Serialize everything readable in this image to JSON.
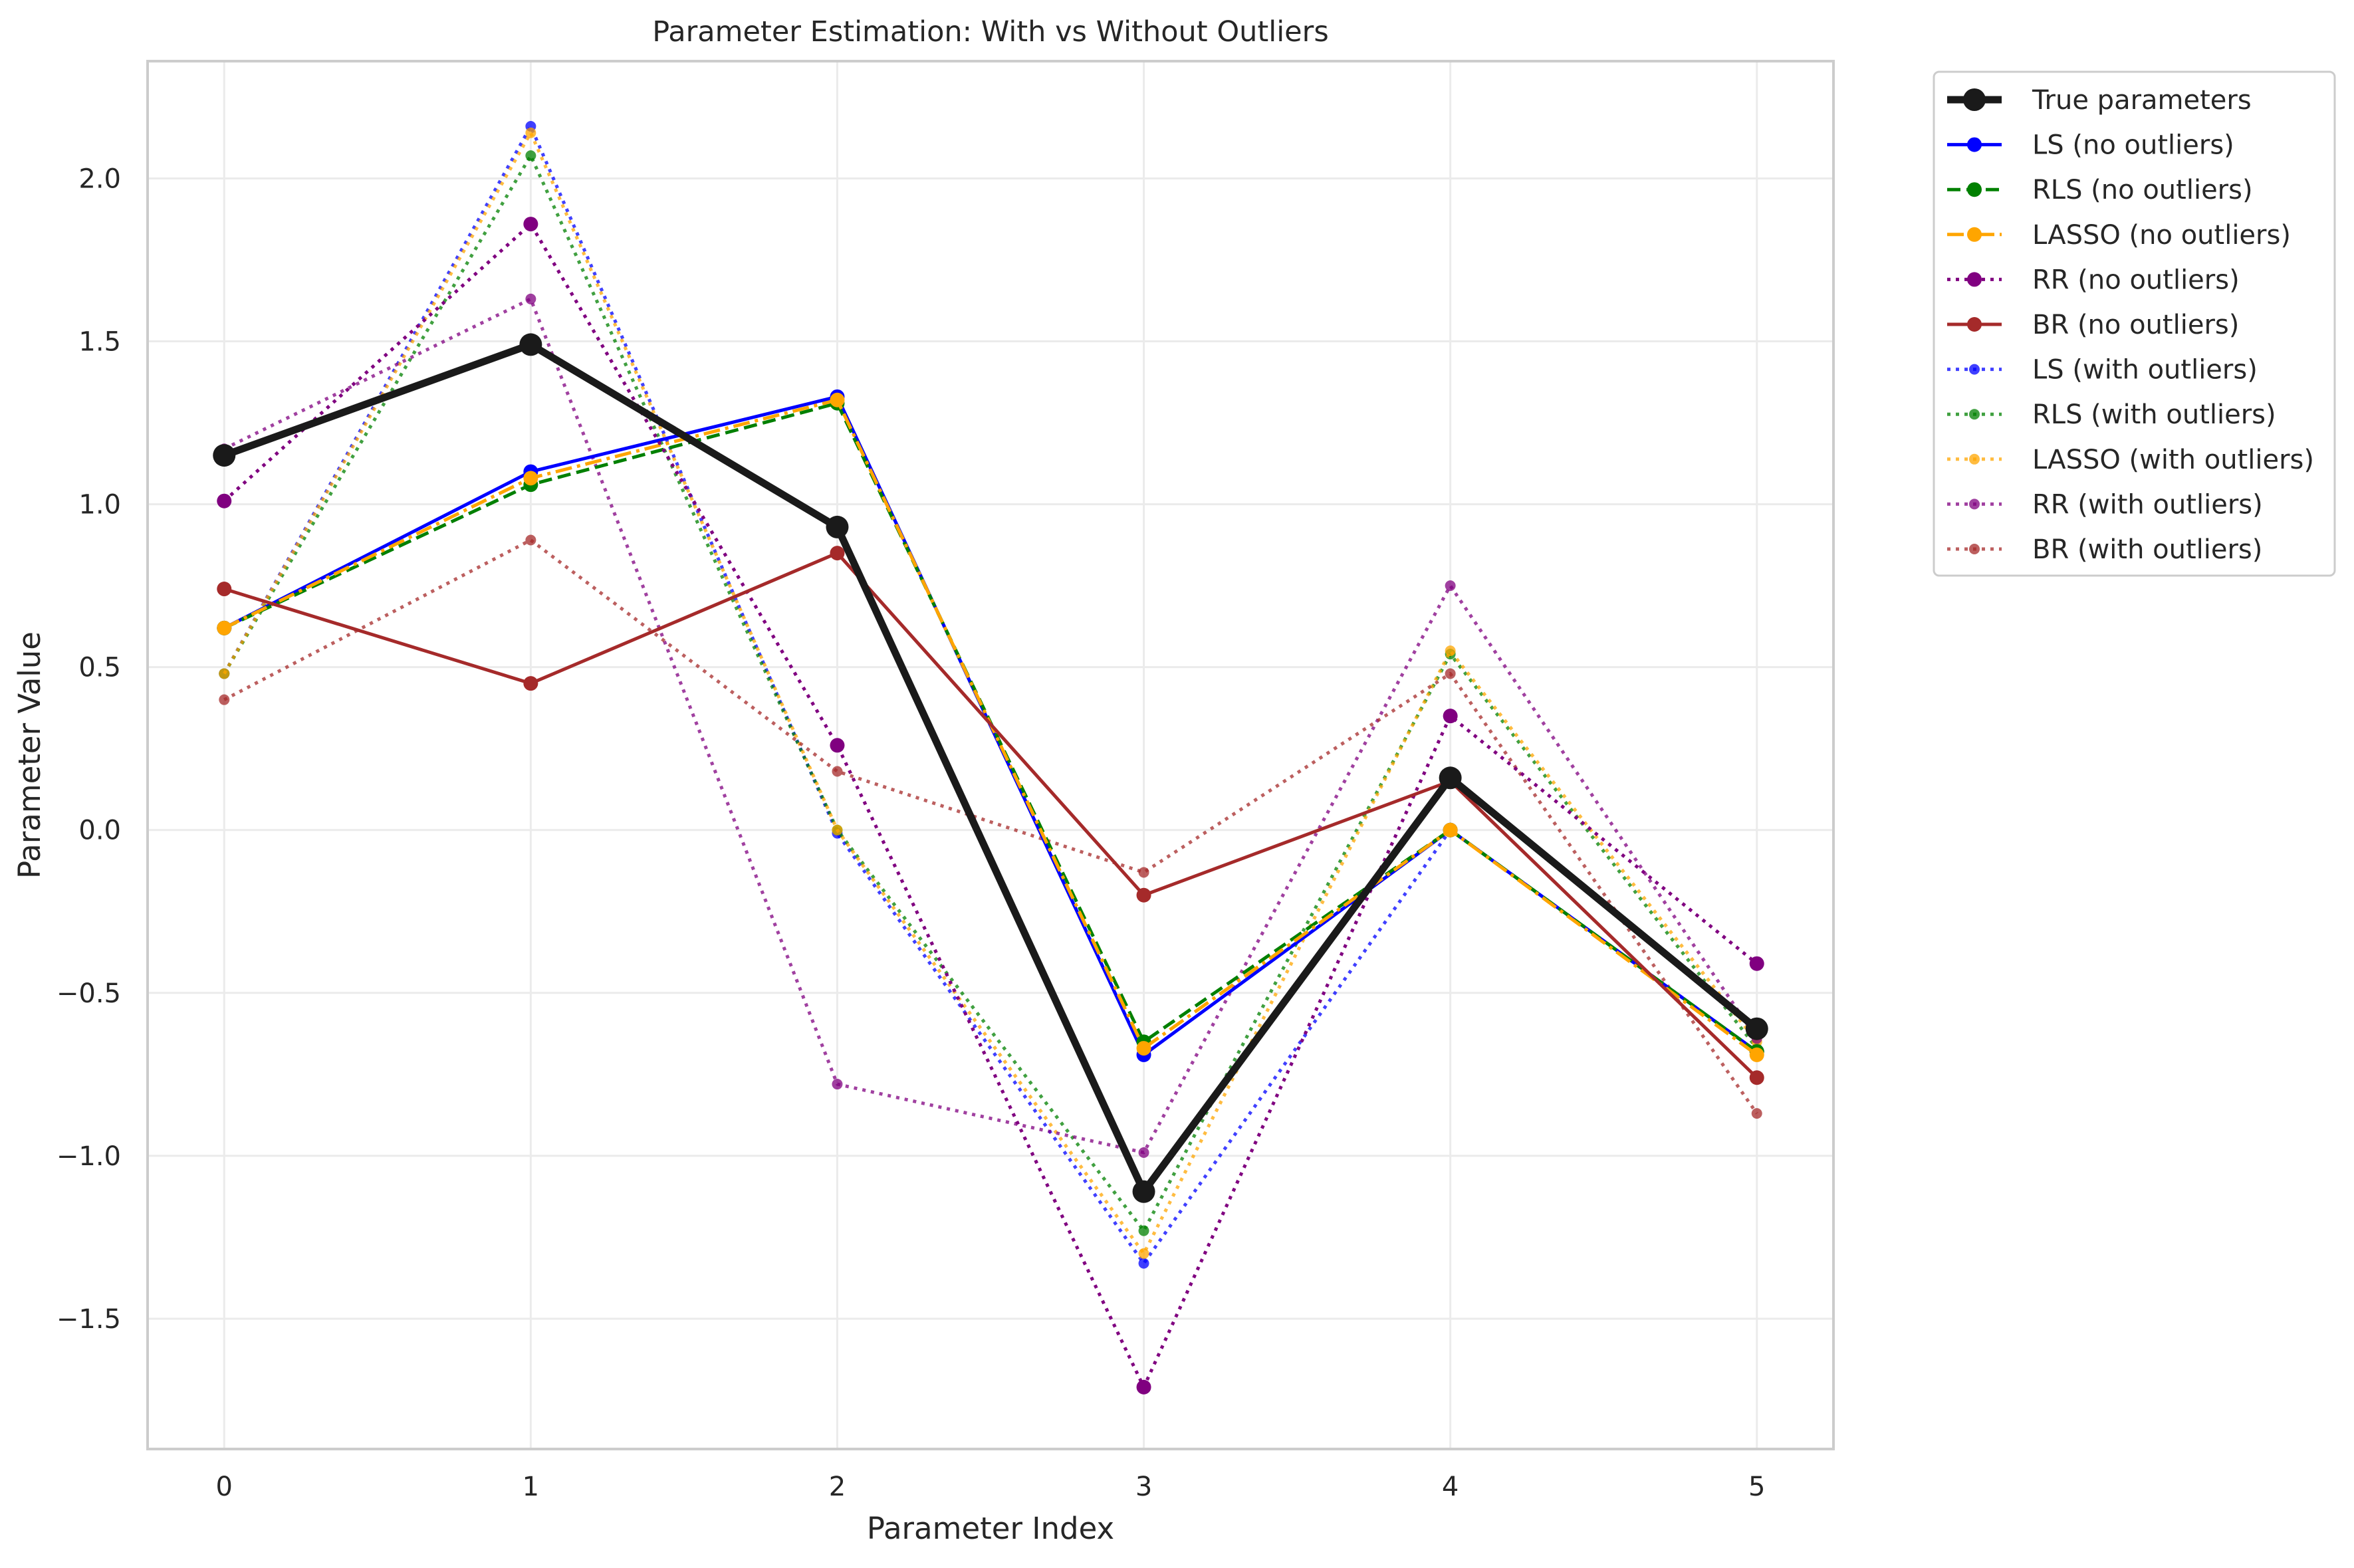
{
  "chart_data": {
    "type": "line",
    "title": "Parameter Estimation: With vs Without Outliers",
    "xlabel": "Parameter Index",
    "ylabel": "Parameter Value",
    "x": [
      0,
      1,
      2,
      3,
      4,
      5
    ],
    "xticks": [
      "0",
      "1",
      "2",
      "3",
      "4",
      "5"
    ],
    "xlim": [
      -0.25,
      5.25
    ],
    "ylim": [
      -1.9,
      2.36
    ],
    "yticks": [
      -1.5,
      -1.0,
      -0.5,
      0.0,
      0.5,
      1.0,
      1.5,
      2.0
    ],
    "ytick_labels": [
      "−1.5",
      "−1.0",
      "−0.5",
      "0.0",
      "0.5",
      "1.0",
      "1.5",
      "2.0"
    ],
    "grid": true,
    "legend_position": "outside-top-right",
    "series": [
      {
        "name": "True parameters",
        "color": "#1a1a1a",
        "style": "solid",
        "emphasis": "heavy",
        "values": [
          1.15,
          1.49,
          0.93,
          -1.11,
          0.16,
          -0.61
        ]
      },
      {
        "name": "LS (no outliers)",
        "color": "#0000ff",
        "style": "solid",
        "emphasis": "normal",
        "values": [
          0.62,
          1.1,
          1.33,
          -0.69,
          0.0,
          -0.68
        ]
      },
      {
        "name": "RLS (no outliers)",
        "color": "#008000",
        "style": "dashed",
        "emphasis": "normal",
        "values": [
          0.62,
          1.06,
          1.31,
          -0.65,
          0.0,
          -0.68
        ]
      },
      {
        "name": "LASSO (no outliers)",
        "color": "#ffa500",
        "style": "dashdot",
        "emphasis": "normal",
        "values": [
          0.62,
          1.08,
          1.32,
          -0.67,
          0.0,
          -0.69
        ]
      },
      {
        "name": "RR (no outliers)",
        "color": "#800080",
        "style": "dotted",
        "emphasis": "normal",
        "values": [
          1.01,
          1.86,
          0.26,
          -1.71,
          0.35,
          -0.41
        ]
      },
      {
        "name": "BR (no outliers)",
        "color": "#a52a2a",
        "style": "solid",
        "emphasis": "normal",
        "values": [
          0.74,
          0.45,
          0.85,
          -0.2,
          0.15,
          -0.76
        ]
      },
      {
        "name": "LS (with outliers)",
        "color": "#0000ff",
        "style": "dotted",
        "emphasis": "faded",
        "values": [
          0.48,
          2.16,
          -0.01,
          -1.33,
          0.0,
          -0.68
        ]
      },
      {
        "name": "RLS (with outliers)",
        "color": "#008000",
        "style": "dotted",
        "emphasis": "faded",
        "values": [
          0.48,
          2.07,
          0.0,
          -1.23,
          0.54,
          -0.67
        ]
      },
      {
        "name": "LASSO (with outliers)",
        "color": "#ffa500",
        "style": "dotted",
        "emphasis": "faded",
        "values": [
          0.48,
          2.14,
          0.0,
          -1.3,
          0.55,
          -0.65
        ]
      },
      {
        "name": "RR (with outliers)",
        "color": "#800080",
        "style": "dotted",
        "emphasis": "faded",
        "values": [
          1.17,
          1.63,
          -0.78,
          -0.99,
          0.75,
          -0.64
        ]
      },
      {
        "name": "BR (with outliers)",
        "color": "#a52a2a",
        "style": "dotted",
        "emphasis": "faded",
        "values": [
          0.4,
          0.89,
          0.18,
          -0.13,
          0.48,
          -0.87
        ]
      }
    ]
  }
}
